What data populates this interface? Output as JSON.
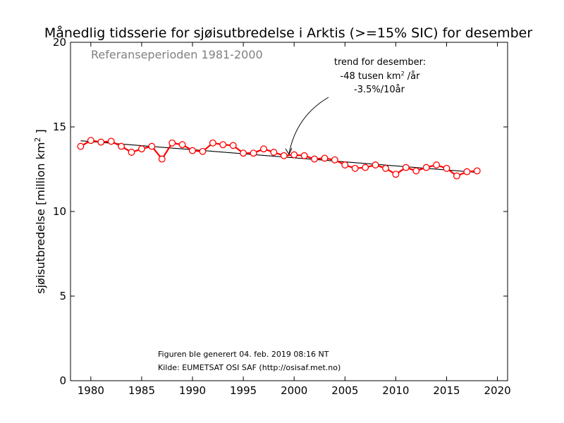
{
  "chart_data": {
    "type": "line",
    "title": "Månedlig tidsserie for sjøisutbredelse i Arktis (>=15% SIC) for desember",
    "xlabel": "",
    "ylabel": "sjøisutbredelse [million km",
    "ylabel_sup": "2",
    "ylabel_end": " ]",
    "xlim": [
      1978,
      2021
    ],
    "ylim": [
      0,
      20
    ],
    "xticks": [
      1980,
      1985,
      1990,
      1995,
      2000,
      2005,
      2010,
      2015,
      2020
    ],
    "yticks": [
      0,
      5,
      10,
      15,
      20
    ],
    "grid": false,
    "series": [
      {
        "color": "#ff0000",
        "x": [
          1979,
          1980,
          1981,
          1982,
          1983,
          1984,
          1985,
          1986,
          1987,
          1988,
          1989,
          1990,
          1991,
          1992,
          1993,
          1994,
          1995,
          1996,
          1997,
          1998,
          1999,
          2000,
          2001,
          2002,
          2003,
          2004,
          2005,
          2006,
          2007,
          2008,
          2009,
          2010,
          2011,
          2012,
          2013,
          2014,
          2015,
          2016,
          2017,
          2018
        ],
        "y": [
          13.85,
          14.2,
          14.1,
          14.15,
          13.85,
          13.5,
          13.7,
          13.85,
          13.1,
          14.05,
          13.95,
          13.6,
          13.55,
          14.05,
          13.95,
          13.9,
          13.45,
          13.45,
          13.7,
          13.5,
          13.3,
          13.35,
          13.3,
          13.1,
          13.15,
          13.05,
          12.75,
          12.55,
          12.6,
          12.75,
          12.55,
          12.2,
          12.6,
          12.4,
          12.6,
          12.75,
          12.55,
          12.1,
          12.35,
          12.4
        ]
      }
    ],
    "trend": {
      "color": "#000000",
      "x": [
        1979,
        2018
      ],
      "y": [
        14.18,
        12.31
      ]
    },
    "reference_text": "Referanseperioden 1981-2000",
    "annotation": {
      "line1": "trend for desember:",
      "line2_pre": "-48 tusen km",
      "line2_sup": "2",
      "line2_post": " /år",
      "line3": "-3.5%/10år"
    },
    "footer": {
      "line1": "Figuren ble generert 04. feb. 2019 08:16 NT",
      "line2": "Kilde: EUMETSAT OSI SAF (http://osisaf.met.no)"
    }
  }
}
